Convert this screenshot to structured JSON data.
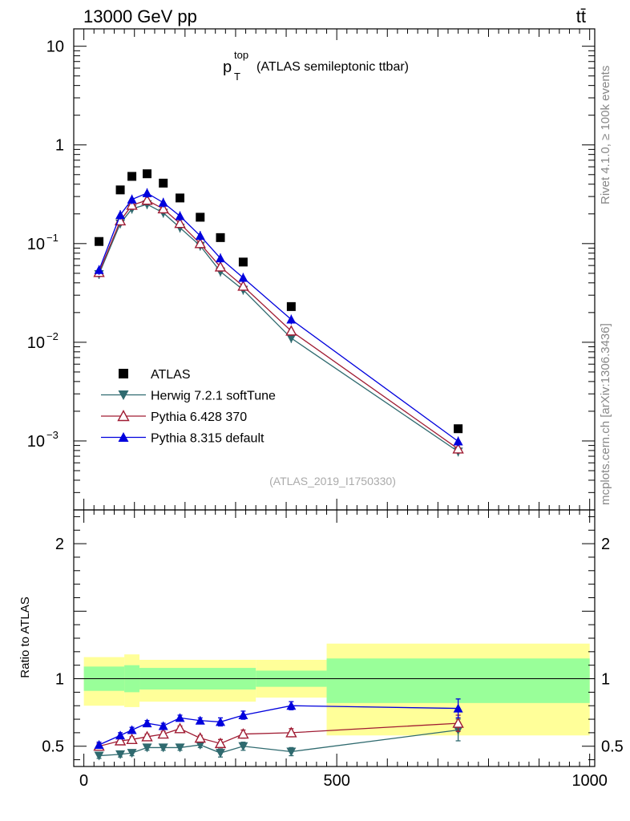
{
  "header": {
    "energy_label": "13000 GeV pp",
    "process_label": "tt̄"
  },
  "side_labels": {
    "rivet": "Rivet 4.1.0, ≥ 100k events",
    "mcplots": "mcplots.cern.ch [arXiv:1306.3436]"
  },
  "chart_data": [
    {
      "type": "scatter",
      "panel": "main",
      "title_main": "p",
      "title_sub": "T",
      "title_sup": "top",
      "title_suffix": "(ATLAS semileptonic ttbar)",
      "analysis_id": "(ATLAS_2019_I1750330)",
      "yscale": "log",
      "ylim": [
        0.0002,
        15
      ],
      "xlim": [
        -20,
        1010
      ],
      "y_ticks": [
        {
          "value": 10,
          "label": "10"
        },
        {
          "value": 1,
          "label": "1"
        },
        {
          "value": 0.1,
          "label": "10",
          "exp": "−1"
        },
        {
          "value": 0.01,
          "label": "10",
          "exp": "−2"
        },
        {
          "value": 0.001,
          "label": "10",
          "exp": "−3"
        }
      ],
      "x": [
        30,
        72,
        95,
        125,
        157,
        190,
        230,
        270,
        315,
        410,
        740
      ],
      "series": [
        {
          "name": "ATLAS",
          "color": "#000000",
          "marker": "square",
          "values": [
            0.105,
            0.35,
            0.48,
            0.51,
            0.41,
            0.29,
            0.185,
            0.115,
            0.065,
            0.023,
            0.00133
          ]
        },
        {
          "name": "Herwig 7.2.1 softTune",
          "color": "#2f6a6f",
          "marker": "triangle-down",
          "values": [
            0.049,
            0.16,
            0.225,
            0.25,
            0.205,
            0.145,
            0.095,
            0.052,
            0.034,
            0.011,
            0.00078
          ]
        },
        {
          "name": "Pythia 6.428 370",
          "color": "#a01c33",
          "marker": "triangle-up-open",
          "values": [
            0.051,
            0.17,
            0.245,
            0.275,
            0.225,
            0.16,
            0.1,
            0.058,
            0.037,
            0.013,
            0.00083
          ]
        },
        {
          "name": "Pythia 8.315 default",
          "color": "#0000dd",
          "marker": "triangle-up",
          "values": [
            0.054,
            0.195,
            0.28,
            0.325,
            0.26,
            0.19,
            0.12,
            0.071,
            0.045,
            0.017,
            0.00099
          ]
        }
      ]
    },
    {
      "type": "scatter",
      "panel": "ratio",
      "ylabel": "Ratio to ATLAS",
      "ylim": [
        0.35,
        2.25
      ],
      "xlim": [
        -20,
        1010
      ],
      "y_ticks": [
        {
          "value": 0.5,
          "label": "0.5"
        },
        {
          "value": 1,
          "label": "1"
        },
        {
          "value": 2,
          "label": "2"
        }
      ],
      "x_ticks": [
        {
          "value": 0,
          "label": "0"
        },
        {
          "value": 500,
          "label": "500"
        },
        {
          "value": 1000,
          "label": "1000"
        }
      ],
      "bands": {
        "edges": [
          0,
          80,
          110,
          340,
          480,
          1000
        ],
        "green_low": [
          0.91,
          0.9,
          0.92,
          0.94,
          0.82
        ],
        "green_high": [
          1.09,
          1.1,
          1.08,
          1.06,
          1.15
        ],
        "yellow_low": [
          0.8,
          0.79,
          0.83,
          0.86,
          0.58
        ],
        "yellow_high": [
          1.16,
          1.18,
          1.14,
          1.14,
          1.26
        ]
      },
      "x": [
        30,
        72,
        95,
        125,
        157,
        190,
        230,
        270,
        315,
        410,
        740
      ],
      "series": [
        {
          "name": "Herwig 7.2.1 softTune",
          "color": "#2f6a6f",
          "marker": "triangle-down",
          "values": [
            0.43,
            0.44,
            0.45,
            0.49,
            0.49,
            0.49,
            0.51,
            0.45,
            0.5,
            0.46,
            0.62
          ],
          "errors": [
            0.02,
            0.02,
            0.02,
            0.02,
            0.02,
            0.02,
            0.02,
            0.03,
            0.03,
            0.03,
            0.08
          ]
        },
        {
          "name": "Pythia 6.428 370",
          "color": "#a01c33",
          "marker": "triangle-up-open",
          "values": [
            0.5,
            0.54,
            0.55,
            0.57,
            0.59,
            0.63,
            0.56,
            0.52,
            0.59,
            0.6,
            0.67
          ],
          "errors": [
            0.02,
            0.02,
            0.02,
            0.02,
            0.02,
            0.02,
            0.02,
            0.03,
            0.03,
            0.03,
            0.06
          ]
        },
        {
          "name": "Pythia 8.315 default",
          "color": "#0000dd",
          "marker": "triangle-up",
          "values": [
            0.51,
            0.58,
            0.62,
            0.67,
            0.65,
            0.71,
            0.69,
            0.68,
            0.73,
            0.8,
            0.78
          ],
          "errors": [
            0.02,
            0.02,
            0.02,
            0.02,
            0.02,
            0.02,
            0.02,
            0.03,
            0.03,
            0.03,
            0.07
          ]
        }
      ]
    }
  ]
}
